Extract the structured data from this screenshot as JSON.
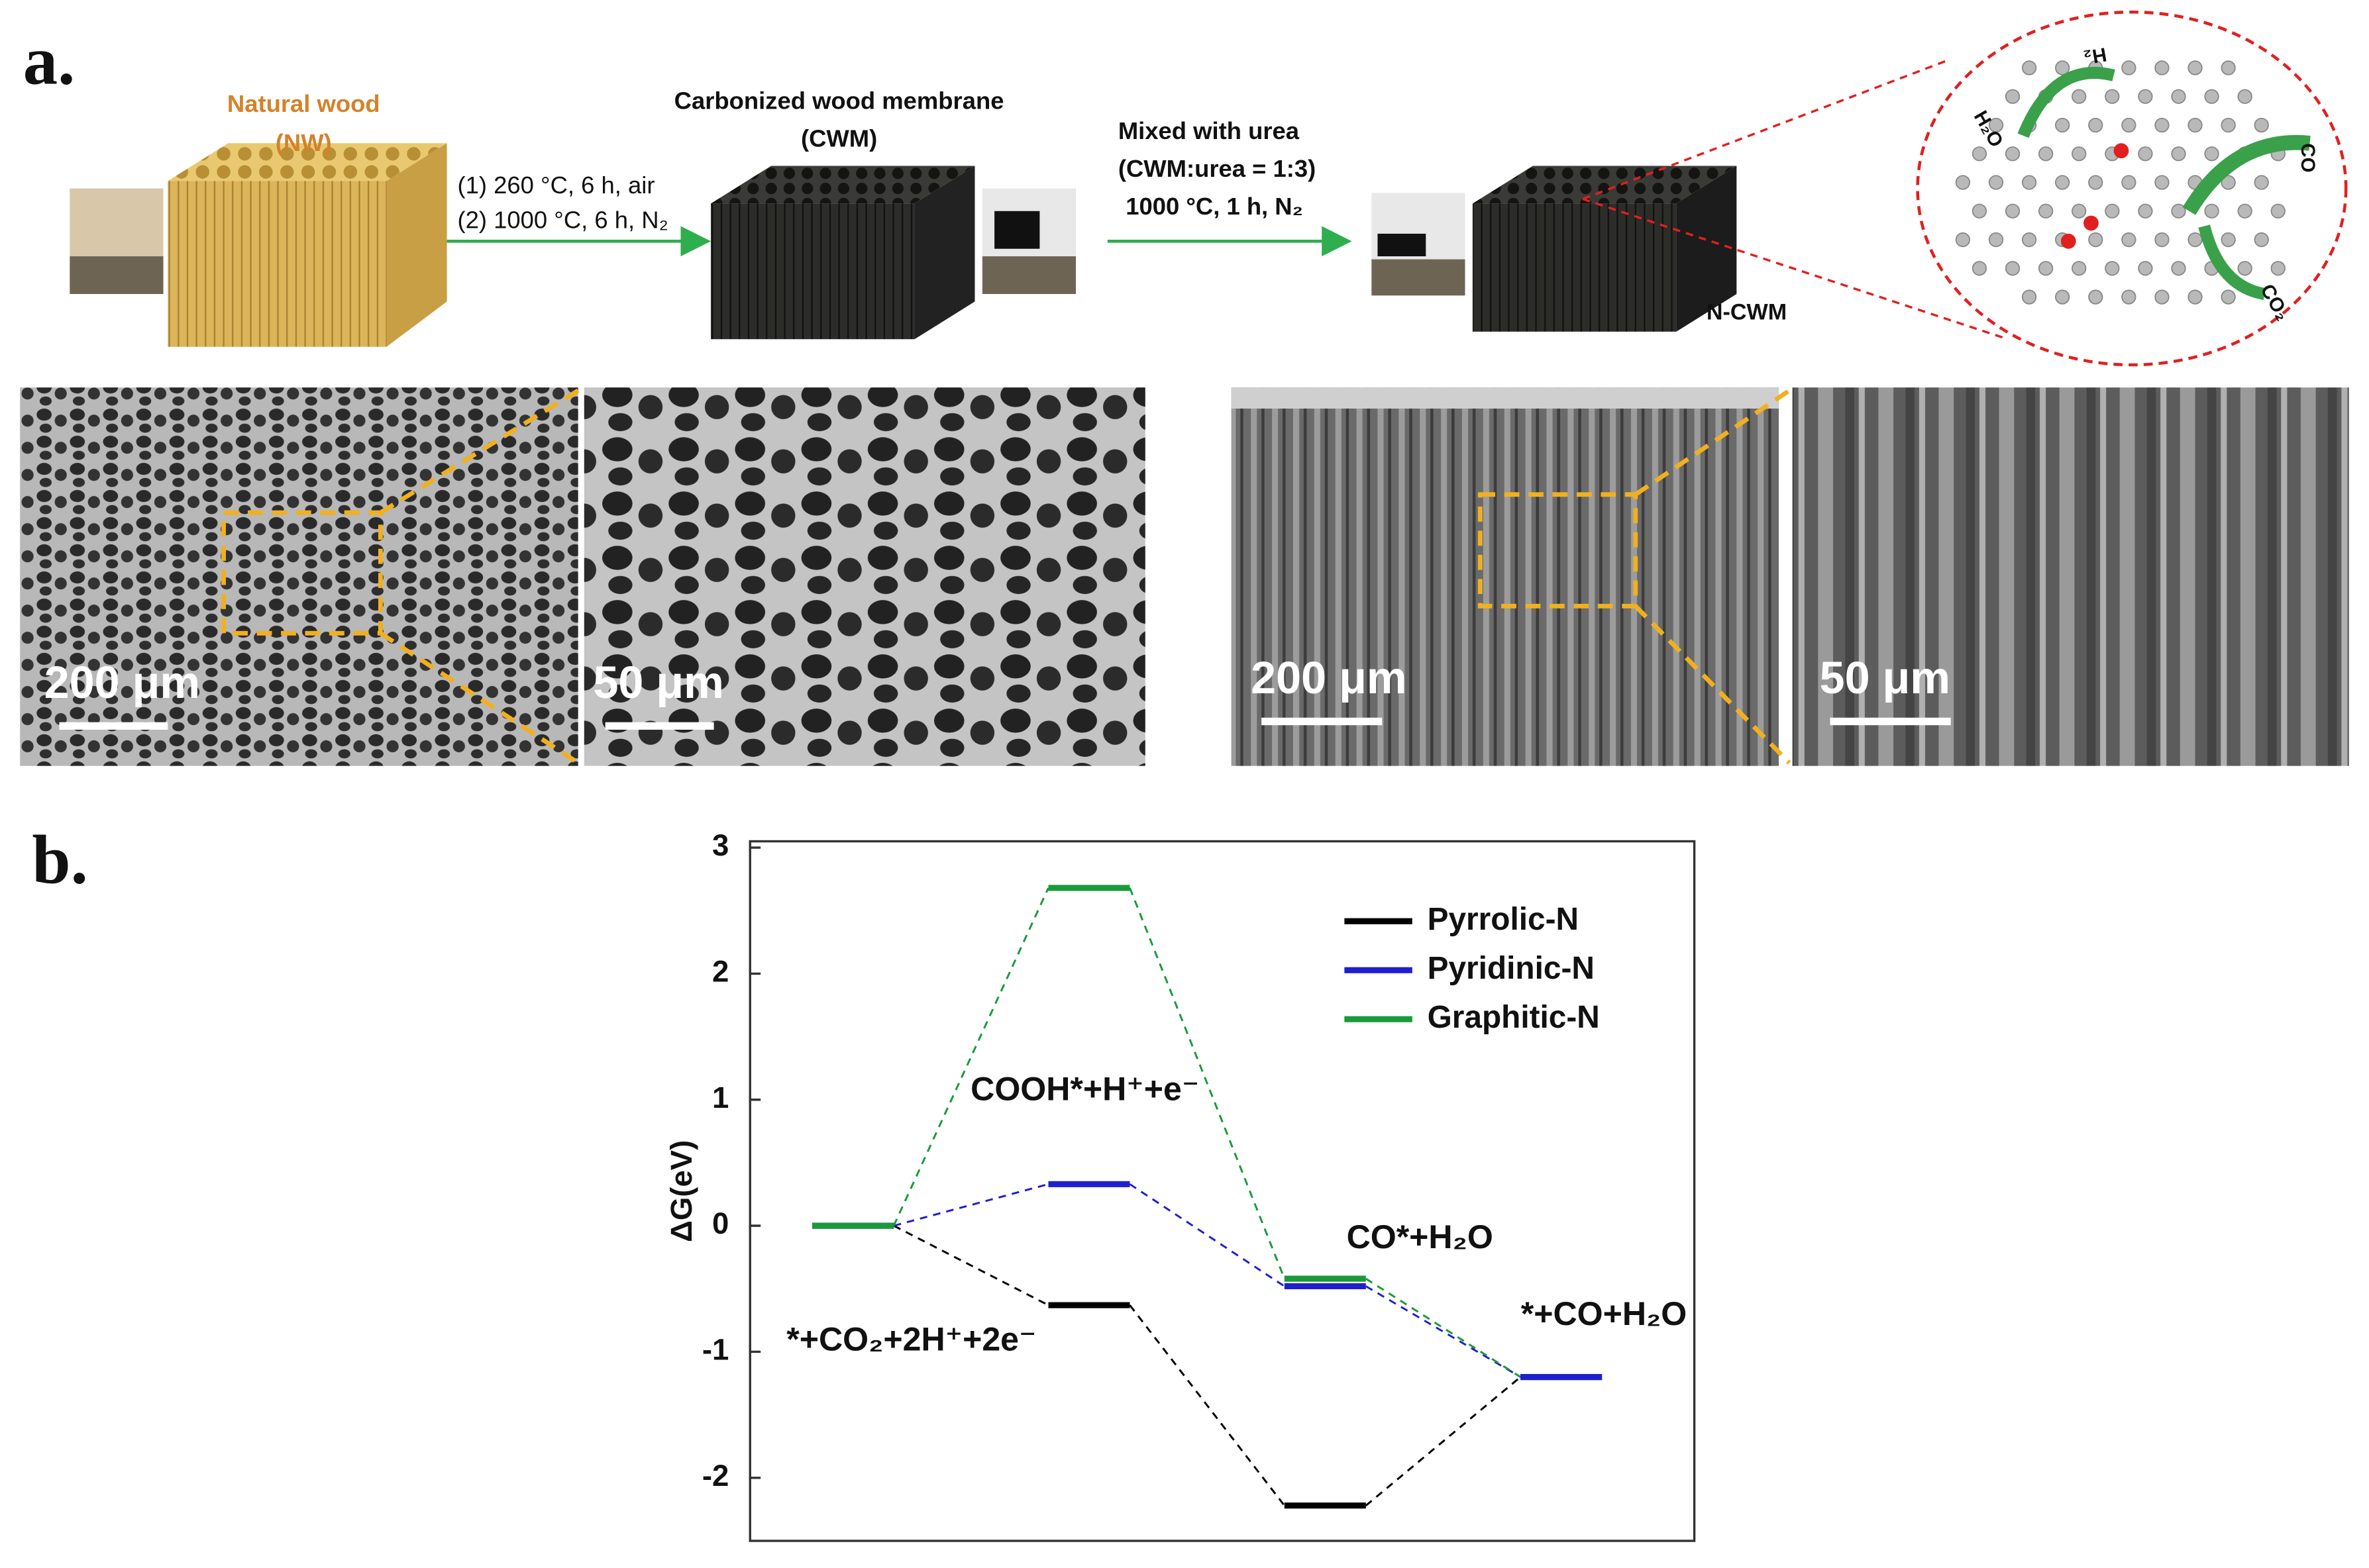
{
  "panel_a": {
    "label": "a.",
    "nw_title": "Natural wood",
    "nw_abbr": "(NW)",
    "step1_line1": "(1) 260 °C, 6 h, air",
    "step1_line2": "(2) 1000 °C, 6 h, N₂",
    "cwm_title": "Carbonized wood membrane",
    "cwm_abbr": "(CWM)",
    "step2_line1": "Mixed with urea",
    "step2_line2": "(CWM:urea = 1:3)",
    "step2_line3": "1000 °C, 1 h, N₂",
    "ncwm": "N-CWM",
    "molecules": [
      "H₂O",
      "H₂",
      "CO",
      "CO₂"
    ],
    "scale_bars": [
      "200 μm",
      "50 μm",
      "200 μm",
      "50 μm"
    ]
  },
  "chart_data": {
    "type": "step",
    "panel_label": "b.",
    "ylabel": "ΔG(eV)",
    "categories": [
      "*+CO₂+2H⁺+2e⁻",
      "COOH*+H⁺+e⁻",
      "CO*+H₂O",
      "*+CO+H₂O"
    ],
    "series": [
      {
        "name": "Pyrrolic-N",
        "color": "#000000",
        "values": [
          0,
          -0.63,
          -2.22,
          -1.2
        ]
      },
      {
        "name": "Pyridinic-N",
        "color": "#1f1fd0",
        "values": [
          0,
          0.33,
          -0.48,
          -1.2
        ]
      },
      {
        "name": "Graphitic-N",
        "color": "#1a9a3a",
        "values": [
          0,
          2.68,
          -0.42,
          -1.2
        ]
      }
    ],
    "ylim": [
      -2.5,
      3.05
    ],
    "yticks": [
      -2,
      -1,
      0,
      1,
      2,
      3
    ],
    "legend": "upper right"
  }
}
